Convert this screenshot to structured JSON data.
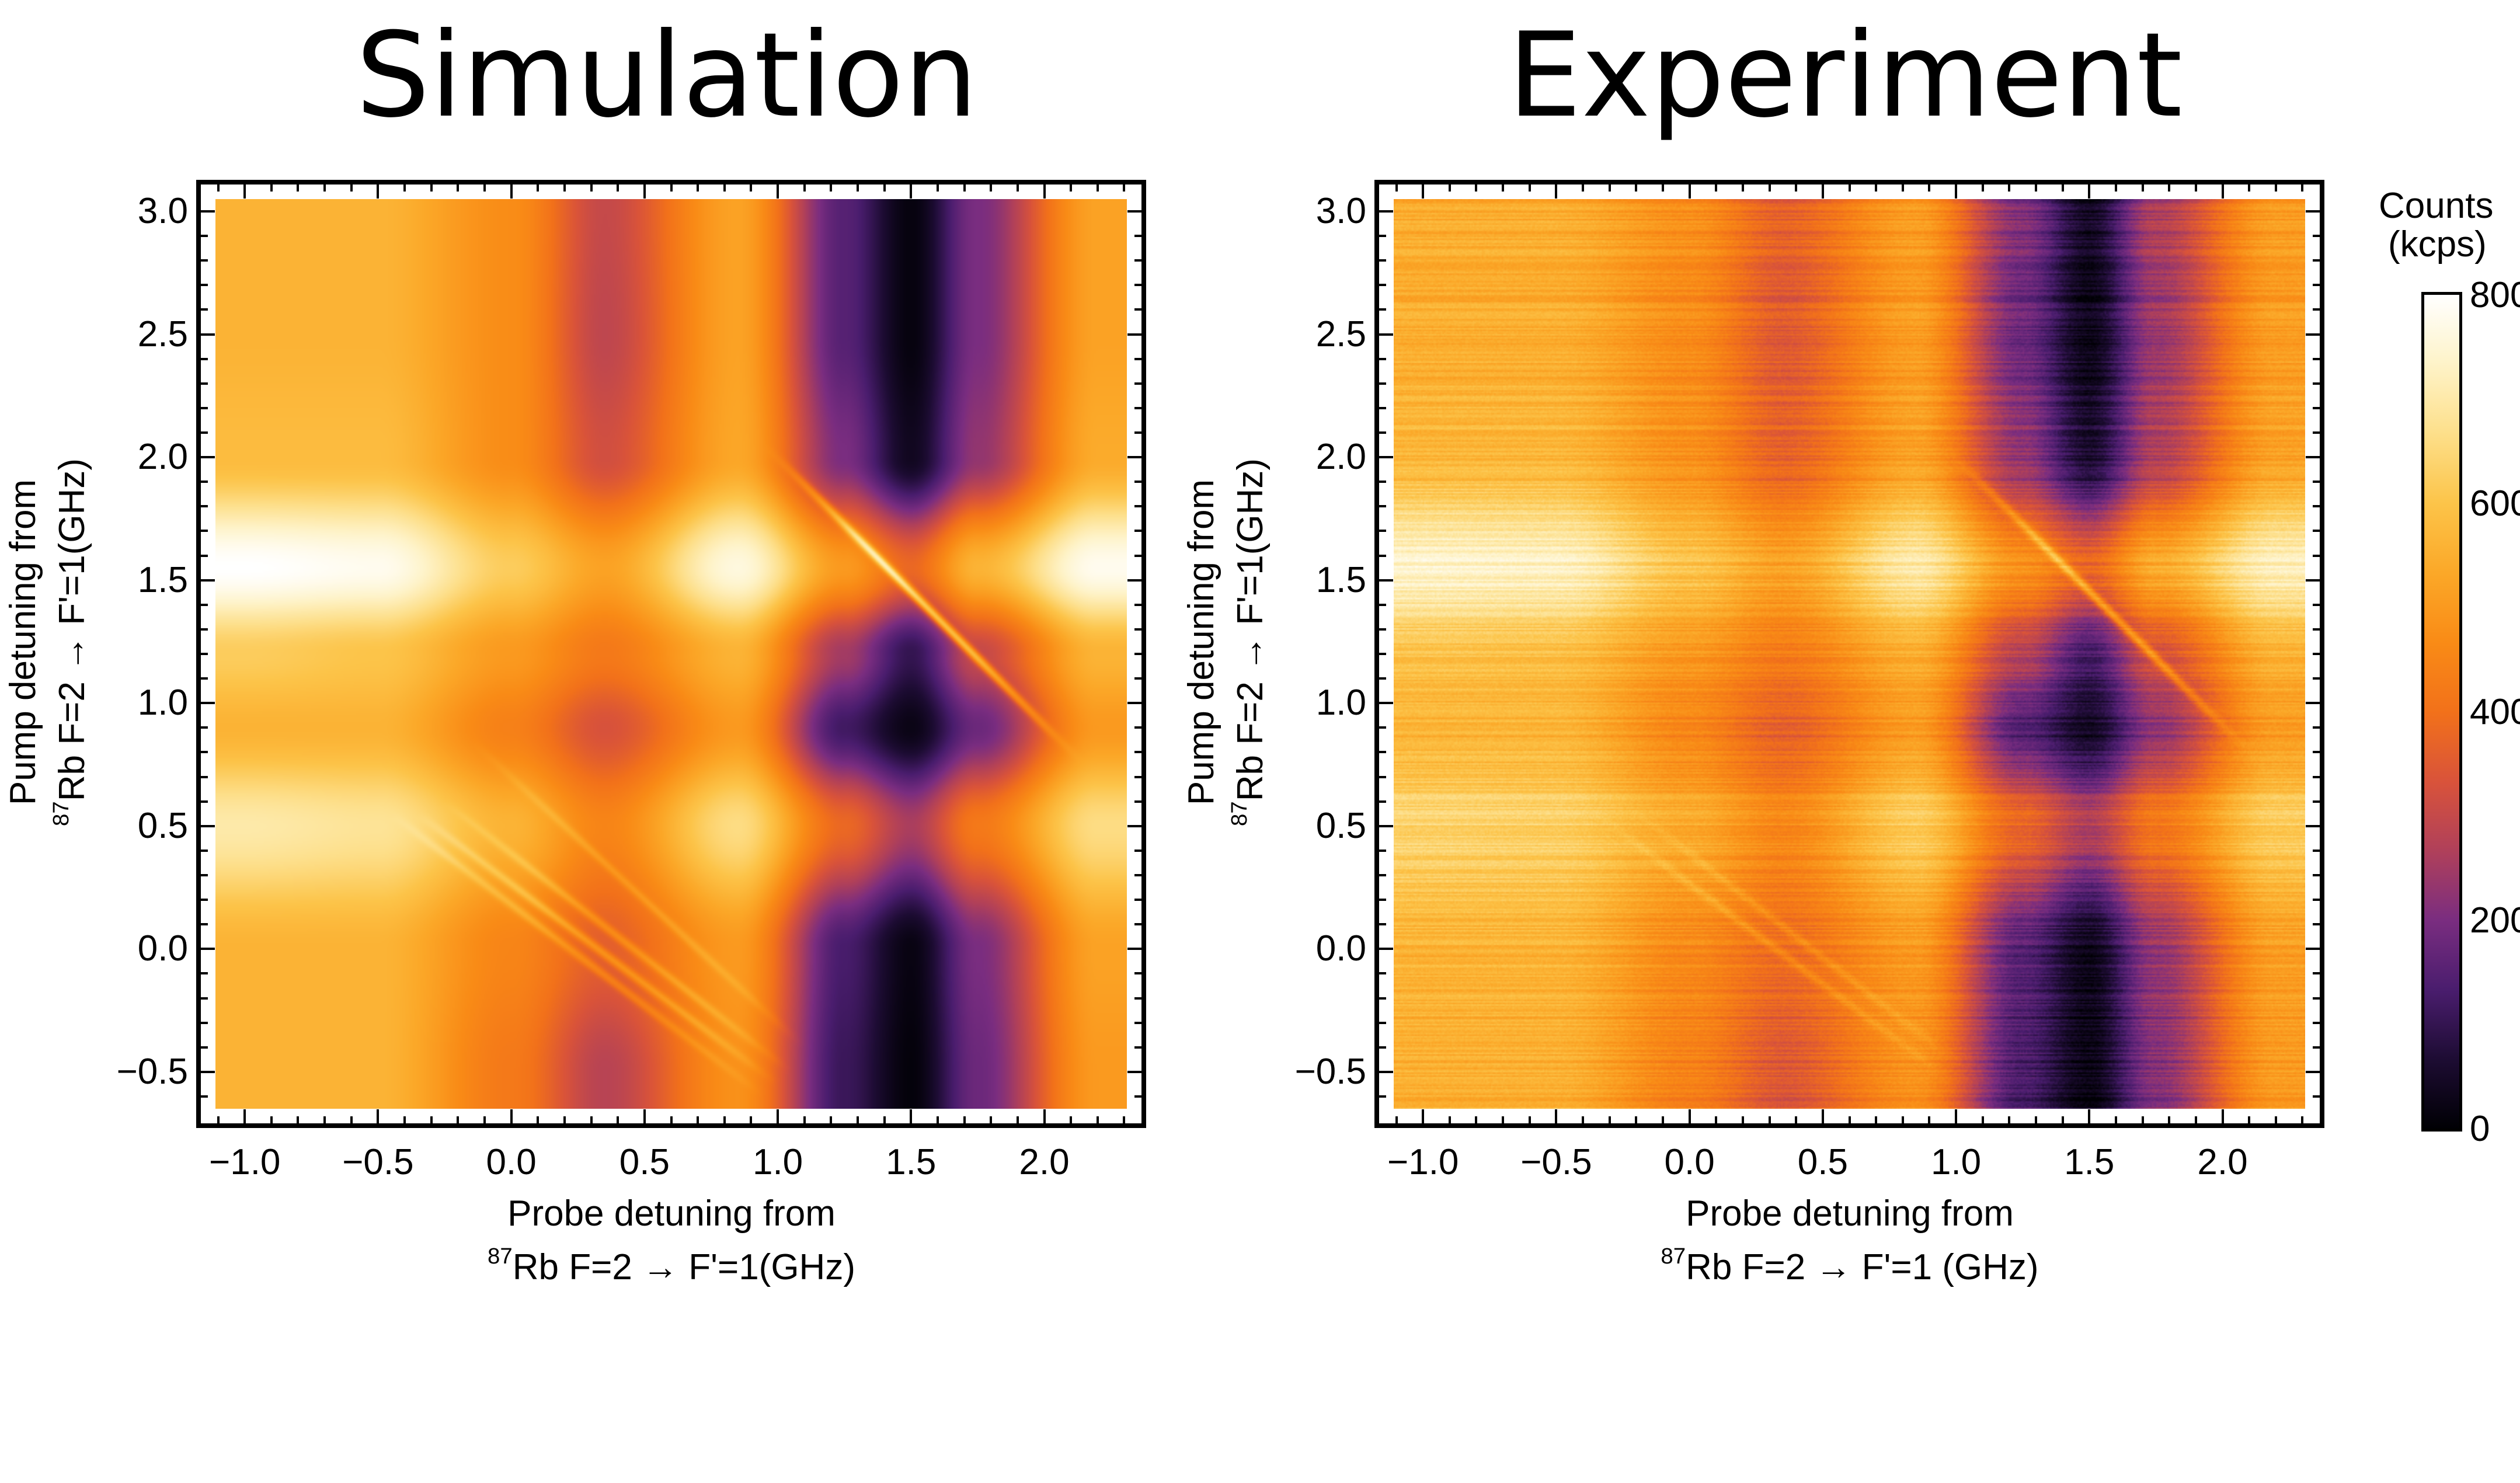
{
  "chart_data": [
    {
      "type": "heatmap",
      "title": "Simulation",
      "xlabel": [
        "Probe detuning from",
        "87",
        "Rb F=2 → F'=1(GHz)"
      ],
      "ylabel": [
        "Pump detuning from",
        "87",
        "Rb F=2 → F'=1(GHz)"
      ],
      "xlim": [
        -1.11,
        2.31
      ],
      "ylim": [
        -0.65,
        3.05
      ],
      "xticks": [
        "−1.0",
        "−0.5",
        "0.0",
        "0.5",
        "1.0",
        "1.5",
        "2.0"
      ],
      "xtick_values": [
        -1.0,
        -0.5,
        0.0,
        0.5,
        1.0,
        1.5,
        2.0
      ],
      "yticks": [
        "−0.5",
        "0.0",
        "0.5",
        "1.0",
        "1.5",
        "2.0",
        "2.5",
        "3.0"
      ],
      "ytick_values": [
        -0.5,
        0.0,
        0.5,
        1.0,
        1.5,
        2.0,
        2.5,
        3.0
      ],
      "noise": false,
      "grid_x": [
        -1.0,
        -0.5,
        0.0,
        0.35,
        0.85,
        1.25,
        1.5,
        1.75,
        2.2
      ],
      "grid_y": [
        3.0,
        2.5,
        2.0,
        1.55,
        1.2,
        0.9,
        0.5,
        0.0,
        -0.5
      ],
      "z_kcps": [
        [
          560,
          560,
          470,
          300,
          520,
          150,
          15,
          200,
          520
        ],
        [
          560,
          560,
          470,
          290,
          520,
          150,
          15,
          200,
          520
        ],
        [
          580,
          580,
          470,
          320,
          530,
          200,
          40,
          230,
          540
        ],
        [
          800,
          780,
          620,
          520,
          760,
          500,
          380,
          560,
          780
        ],
        [
          620,
          600,
          500,
          420,
          560,
          250,
          100,
          300,
          560
        ],
        [
          560,
          560,
          440,
          330,
          500,
          120,
          25,
          180,
          500
        ],
        [
          700,
          680,
          560,
          450,
          660,
          380,
          260,
          420,
          660
        ],
        [
          560,
          560,
          450,
          360,
          500,
          130,
          20,
          200,
          520
        ],
        [
          560,
          560,
          420,
          280,
          480,
          110,
          10,
          180,
          500
        ]
      ],
      "diagonal_features": [
        {
          "x": [
            0.95,
            2.05
          ],
          "y": [
            2.05,
            0.85
          ],
          "amplitude": 130
        },
        {
          "x": [
            1.0,
            2.1
          ],
          "y": [
            2.0,
            0.8
          ],
          "amplitude": 110
        },
        {
          "x": [
            1.05,
            2.15
          ],
          "y": [
            1.95,
            0.75
          ],
          "amplitude": 90
        },
        {
          "x": [
            -0.45,
            0.95
          ],
          "y": [
            0.55,
            -0.6
          ],
          "amplitude": 90
        },
        {
          "x": [
            -0.35,
            1.0
          ],
          "y": [
            0.55,
            -0.55
          ],
          "amplitude": 120
        },
        {
          "x": [
            -0.25,
            1.05
          ],
          "y": [
            0.6,
            -0.5
          ],
          "amplitude": 100
        },
        {
          "x": [
            -0.15,
            1.1
          ],
          "y": [
            0.85,
            -0.4
          ],
          "amplitude": 70
        }
      ]
    },
    {
      "type": "heatmap",
      "title": "Experiment",
      "xlabel": [
        "Probe detuning from",
        "87",
        "Rb F=2 → F'=1 (GHz)"
      ],
      "ylabel": [
        "Pump detuning from",
        "87",
        "Rb F=2 → F'=1(GHz)"
      ],
      "xlim": [
        -1.11,
        2.31
      ],
      "ylim": [
        -0.65,
        3.05
      ],
      "xticks": [
        "−1.0",
        "−0.5",
        "0.0",
        "0.5",
        "1.0",
        "1.5",
        "2.0"
      ],
      "xtick_values": [
        -1.0,
        -0.5,
        0.0,
        0.5,
        1.0,
        1.5,
        2.0
      ],
      "yticks": [
        "−0.5",
        "0.0",
        "0.5",
        "1.0",
        "1.5",
        "2.0",
        "2.5",
        "3.0"
      ],
      "ytick_values": [
        -0.5,
        0.0,
        0.5,
        1.0,
        1.5,
        2.0,
        2.5,
        3.0
      ],
      "noise": true,
      "grid_x": [
        -1.0,
        -0.5,
        0.0,
        0.35,
        0.85,
        1.25,
        1.5,
        1.75,
        2.2
      ],
      "grid_y": [
        3.0,
        2.5,
        2.0,
        1.55,
        1.2,
        0.9,
        0.5,
        0.0,
        -0.5
      ],
      "z_kcps": [
        [
          540,
          540,
          470,
          360,
          500,
          200,
          40,
          260,
          500
        ],
        [
          550,
          550,
          470,
          350,
          510,
          180,
          30,
          240,
          510
        ],
        [
          570,
          570,
          480,
          370,
          520,
          230,
          60,
          270,
          520
        ],
        [
          740,
          730,
          600,
          520,
          700,
          480,
          380,
          540,
          720
        ],
        [
          600,
          590,
          500,
          430,
          550,
          280,
          130,
          330,
          560
        ],
        [
          560,
          560,
          450,
          360,
          500,
          140,
          40,
          220,
          500
        ],
        [
          640,
          630,
          540,
          460,
          620,
          380,
          270,
          420,
          620
        ],
        [
          560,
          560,
          460,
          390,
          500,
          150,
          30,
          230,
          510
        ],
        [
          550,
          550,
          440,
          340,
          480,
          130,
          20,
          210,
          500
        ]
      ],
      "diagonal_features": [
        {
          "x": [
            0.95,
            2.05
          ],
          "y": [
            2.05,
            0.85
          ],
          "amplitude": 80
        },
        {
          "x": [
            1.0,
            2.1
          ],
          "y": [
            2.0,
            0.8
          ],
          "amplitude": 70
        },
        {
          "x": [
            1.05,
            2.15
          ],
          "y": [
            1.95,
            0.75
          ],
          "amplitude": 60
        },
        {
          "x": [
            -0.35,
            1.0
          ],
          "y": [
            0.55,
            -0.55
          ],
          "amplitude": 70
        },
        {
          "x": [
            -0.25,
            1.05
          ],
          "y": [
            0.6,
            -0.5
          ],
          "amplitude": 60
        }
      ]
    }
  ],
  "colorbar": {
    "title": "Counts",
    "unit": "(kcps)",
    "range": [
      0,
      800
    ],
    "ticks": [
      "800",
      "600",
      "400",
      "200",
      "0"
    ],
    "tick_values": [
      800,
      600,
      400,
      200,
      0
    ],
    "colormap": "inferno",
    "stops": [
      "#000004",
      "#1d0c33",
      "#4a1d6e",
      "#7a2d80",
      "#b0405a",
      "#d9533a",
      "#f2711a",
      "#f98b16",
      "#fba828",
      "#fcc449",
      "#fddf8a",
      "#fef3c8",
      "#ffffff"
    ]
  }
}
